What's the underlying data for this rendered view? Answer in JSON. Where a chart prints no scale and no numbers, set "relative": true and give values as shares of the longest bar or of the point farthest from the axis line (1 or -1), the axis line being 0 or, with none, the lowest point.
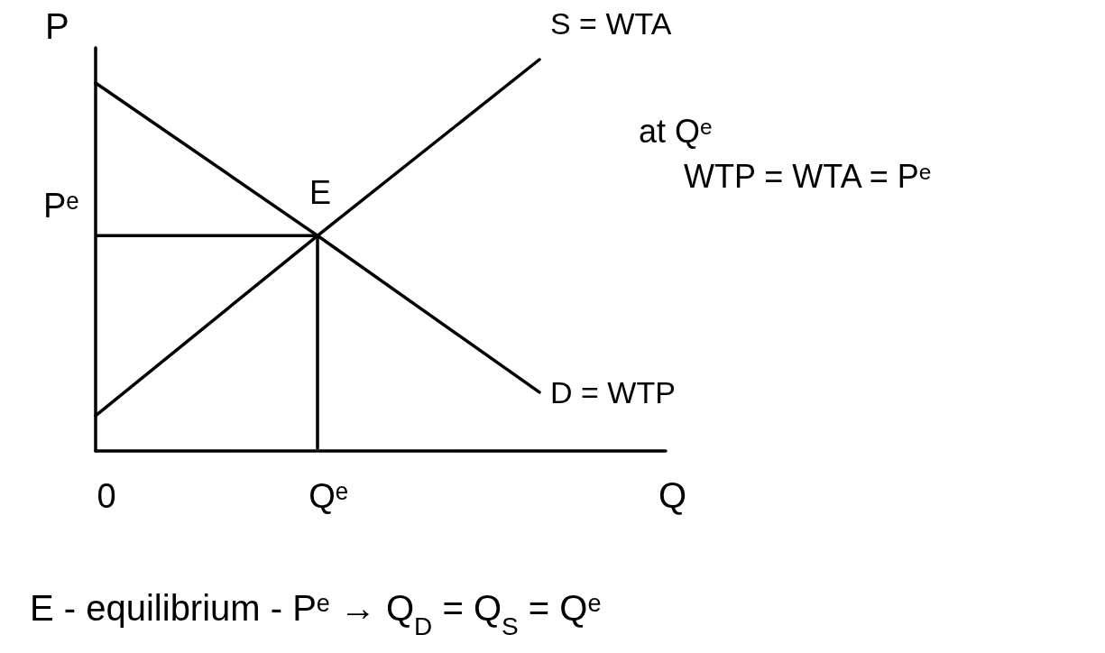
{
  "chart_data": {
    "type": "line",
    "relative": true,
    "xlabel": "Q",
    "ylabel": "P",
    "categories": [
      "0",
      "Qᵉ",
      null
    ],
    "marker": "none",
    "line_style": "solid",
    "series": [
      {
        "name": "S = WTA",
        "color": "#000000",
        "values": [
          0.09,
          0.55,
          1
        ]
      },
      {
        "name": "D = WTP",
        "color": "#000000",
        "values": [
          0.94,
          0.55,
          0.15
        ]
      }
    ],
    "ref_lines": [
      {
        "axis": "y",
        "value": 0.55,
        "label": "Pᵉ"
      },
      {
        "axis": "x",
        "value": "Qᵉ"
      }
    ],
    "annotations": [
      "E",
      "at Qᵉ",
      "WTP = WTA = Pᵉ",
      "E - equilibrium - Pᵉ → Q$_{D}$ = Q$_{S}$ = Qᵉ"
    ]
  }
}
